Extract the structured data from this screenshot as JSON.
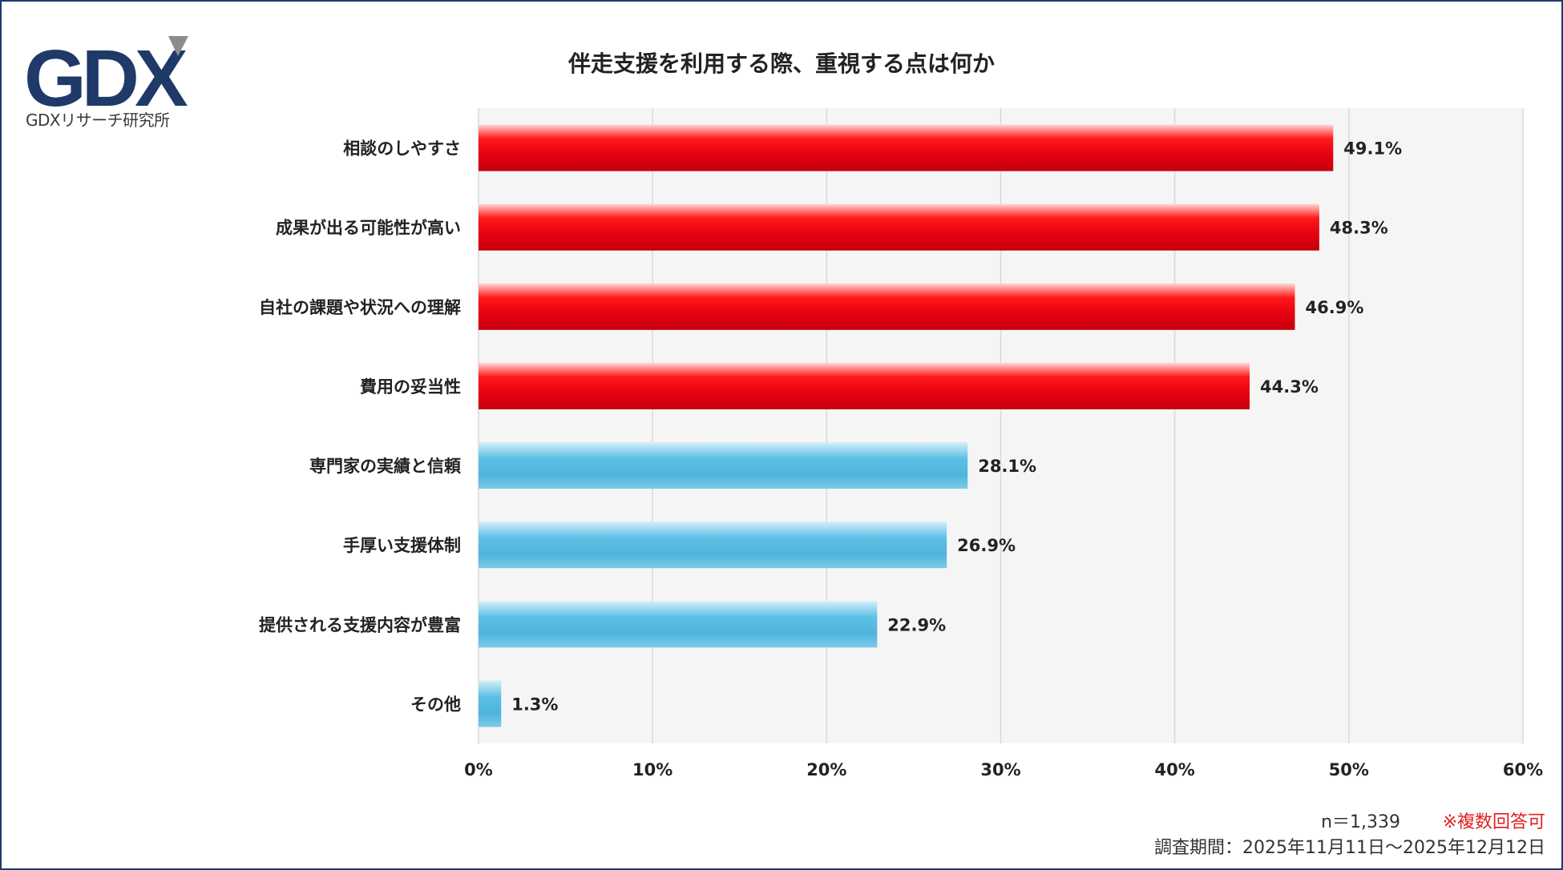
{
  "logo": {
    "text": "GDX",
    "caption": "GDXリサーチ研究所",
    "colors": {
      "primary": "#1f3a68",
      "accent": "#8c8c8c"
    }
  },
  "chart_data": {
    "type": "bar",
    "orientation": "horizontal",
    "title": "伴走支援を利用する際、重視する点は何か",
    "categories": [
      "相談のしやすさ",
      "成果が出る可能性が高い",
      "自社の課題や状況への理解",
      "費用の妥当性",
      "専門家の実績と信頼",
      "手厚い支援体制",
      "提供される支援内容が豊富",
      "その他"
    ],
    "values": [
      49.1,
      48.3,
      46.9,
      44.3,
      28.1,
      26.9,
      22.9,
      1.3
    ],
    "value_labels": [
      "49.1%",
      "48.3%",
      "46.9%",
      "44.3%",
      "28.1%",
      "26.9%",
      "22.9%",
      "1.3%"
    ],
    "highlight_top": 4,
    "xlim": [
      0,
      60
    ],
    "x_ticks": [
      0,
      10,
      20,
      30,
      40,
      50,
      60
    ],
    "x_tick_labels": [
      "0%",
      "10%",
      "20%",
      "30%",
      "40%",
      "50%",
      "60%"
    ],
    "grid": "vertical",
    "colors": {
      "highlight": "#e60012",
      "other": "#52b8e0",
      "plot_bg": "#f5f5f5",
      "grid": "#d9d9d9"
    }
  },
  "notes": {
    "sample": "n＝1,339",
    "multiple": "※複数回答可",
    "period": "調査期間：2025年11月11日～2025年12月12日"
  }
}
